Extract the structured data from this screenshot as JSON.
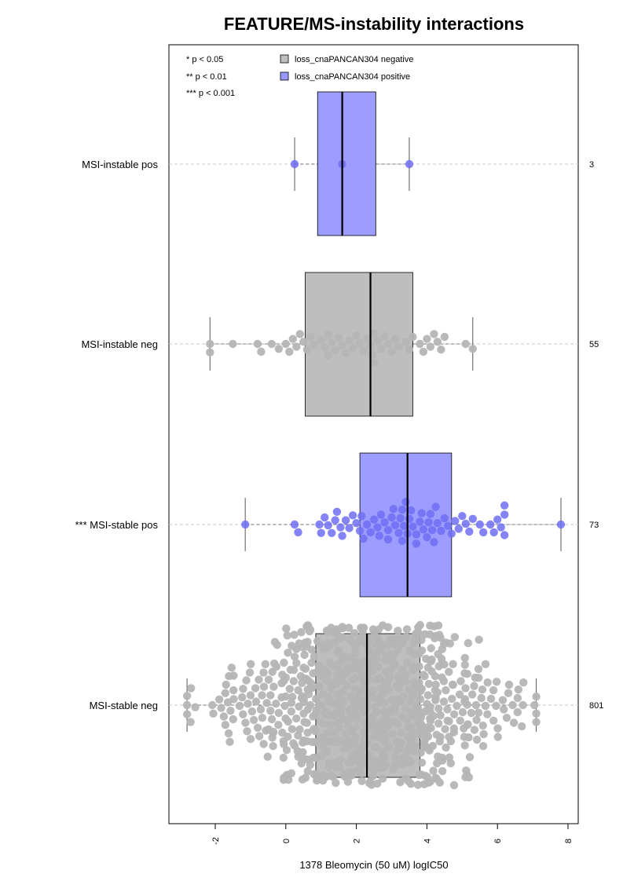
{
  "chart_data": {
    "type": "boxplot",
    "title": "FEATURE/MS-instability interactions",
    "xlabel": "1378 Bleomycin (50 uM) logIC50",
    "ylabel": "",
    "xlim": [
      -3.2,
      8.2
    ],
    "x_ticks": [
      -2,
      0,
      2,
      4,
      6,
      8
    ],
    "x_tick_labels": [
      "-2",
      "0",
      "2",
      "4",
      "6",
      "8"
    ],
    "grid": "dashed horizontal line per group",
    "significance_legend": [
      "* p < 0.05",
      "** p < 0.01",
      "*** p < 0.001"
    ],
    "legend": [
      {
        "label": "loss_cnaPANCAN304 negative",
        "color": "#bebebe"
      },
      {
        "label": "loss_cnaPANCAN304 positive",
        "color": "#9999ff"
      }
    ],
    "colors": {
      "negative_box": "#bebebe",
      "positive_box": "#9d9dff",
      "negative_points": "#b5b5b5",
      "positive_points": "#6f6ff5"
    },
    "groups": [
      {
        "label": "MSI-instable pos",
        "n": "3",
        "status": "positive",
        "whisker_low": 0.25,
        "q1": 0.9,
        "median": 1.6,
        "q3": 2.55,
        "whisker_high": 3.5,
        "points": [
          0.25,
          1.6,
          3.5
        ]
      },
      {
        "label": "MSI-instable neg",
        "n": "55",
        "status": "negative",
        "whisker_low": -2.15,
        "q1": 0.55,
        "median": 2.4,
        "q3": 3.6,
        "whisker_high": 5.3,
        "points": [
          -2.15,
          -2.15,
          -1.5,
          -0.8,
          -0.7,
          -0.4,
          -0.2,
          0.0,
          0.2,
          0.3,
          0.4,
          0.5,
          0.6,
          0.7,
          0.8,
          1.0,
          1.1,
          1.2,
          1.3,
          1.4,
          1.5,
          1.6,
          1.7,
          1.8,
          1.9,
          2.0,
          2.1,
          2.2,
          2.3,
          2.4,
          2.45,
          2.5,
          2.6,
          2.7,
          2.8,
          2.9,
          3.0,
          3.1,
          3.2,
          3.4,
          3.5,
          3.6,
          3.8,
          3.9,
          4.0,
          4.1,
          4.2,
          4.3,
          4.4,
          4.5,
          5.1,
          5.3,
          0.1,
          1.2,
          2.5
        ]
      },
      {
        "label": "*** MSI-stable pos",
        "n": "73",
        "status": "positive",
        "whisker_low": -1.15,
        "q1": 2.1,
        "median": 3.45,
        "q3": 4.7,
        "whisker_high": 7.8,
        "points": [
          -1.15,
          0.25,
          0.35,
          0.95,
          1.0,
          1.1,
          1.2,
          1.3,
          1.45,
          1.55,
          1.6,
          1.7,
          1.8,
          1.9,
          2.0,
          2.1,
          2.15,
          2.2,
          2.3,
          2.4,
          2.5,
          2.6,
          2.65,
          2.7,
          2.8,
          2.9,
          3.0,
          3.05,
          3.1,
          3.2,
          3.25,
          3.3,
          3.35,
          3.4,
          3.45,
          3.5,
          3.55,
          3.6,
          3.7,
          3.8,
          3.85,
          3.9,
          4.0,
          4.05,
          4.1,
          4.2,
          4.25,
          4.3,
          4.4,
          4.5,
          4.6,
          4.7,
          4.8,
          4.9,
          5.0,
          5.1,
          5.2,
          5.3,
          5.5,
          5.6,
          5.8,
          5.9,
          6.0,
          6.1,
          6.2,
          6.2,
          6.2,
          3.3,
          2.9,
          3.7,
          4.15,
          1.4,
          7.8
        ]
      },
      {
        "label": "MSI-stable neg",
        "n": "801",
        "status": "negative",
        "whisker_low": -2.8,
        "q1": 0.85,
        "median": 2.3,
        "q3": 3.8,
        "whisker_high": 7.1,
        "points_note": "801 points, beeswarm"
      }
    ]
  }
}
